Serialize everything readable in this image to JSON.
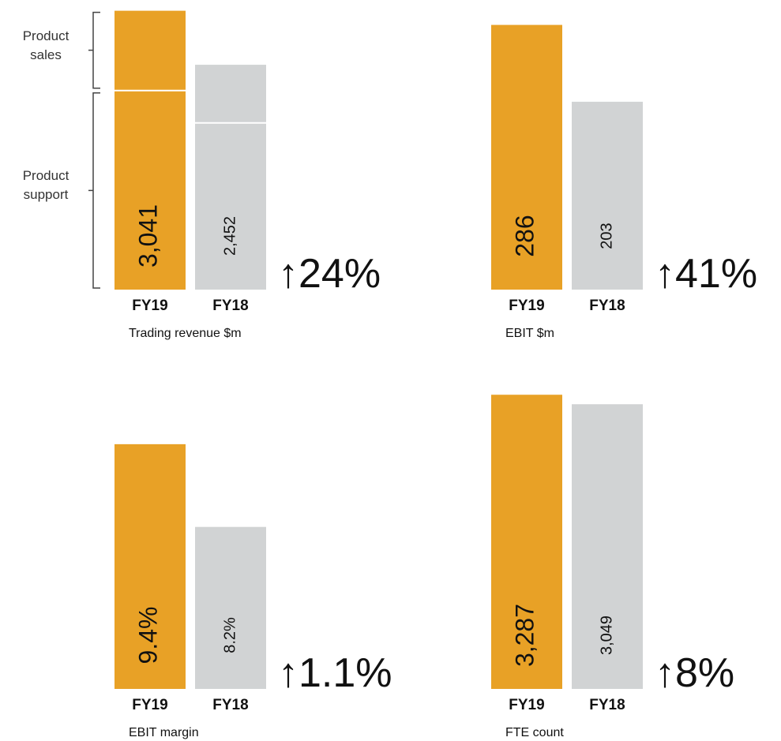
{
  "chart_data": [
    {
      "type": "stacked_bar",
      "categories": [
        "FY19",
        "FY18"
      ],
      "colors": [
        "#e8a126",
        "#d1d3d4"
      ],
      "series": [
        {
          "name": "Product support",
          "values": [
            2171,
            1818
          ]
        },
        {
          "name": "Product sales",
          "values": [
            870,
            634
          ]
        }
      ],
      "total_labels": [
        "3,041",
        "2,452"
      ],
      "ylim": [
        0,
        3270
      ],
      "annotation": "↑24%",
      "axis_label": "Trading revenue $m"
    },
    {
      "type": "bar",
      "categories": [
        "FY19",
        "FY18"
      ],
      "colors": [
        "#e8a126",
        "#d1d3d4"
      ],
      "values": [
        286,
        203
      ],
      "ylim": [
        0,
        324
      ],
      "annotation": "↑41%",
      "axis_label": "EBIT  $m"
    },
    {
      "type": "bar",
      "categories": [
        "FY19",
        "FY18"
      ],
      "colors": [
        "#e8a126",
        "#d1d3d4"
      ],
      "values": [
        9.4,
        8.2
      ],
      "value_labels": [
        "9.4%",
        "8.2%"
      ],
      "ylim": [
        5.85,
        10.2
      ],
      "annotation": "↑1.1%",
      "axis_label": "EBIT  margin"
    },
    {
      "type": "bar",
      "categories": [
        "FY19",
        "FY18"
      ],
      "colors": [
        "#e8a126",
        "#d1d3d4"
      ],
      "values": [
        3287,
        3049
      ],
      "value_labels": [
        "3,287",
        "3,049"
      ],
      "ylim": [
        -4100,
        3430
      ],
      "annotation": "↑8%",
      "axis_label": "FTE  count"
    }
  ]
}
